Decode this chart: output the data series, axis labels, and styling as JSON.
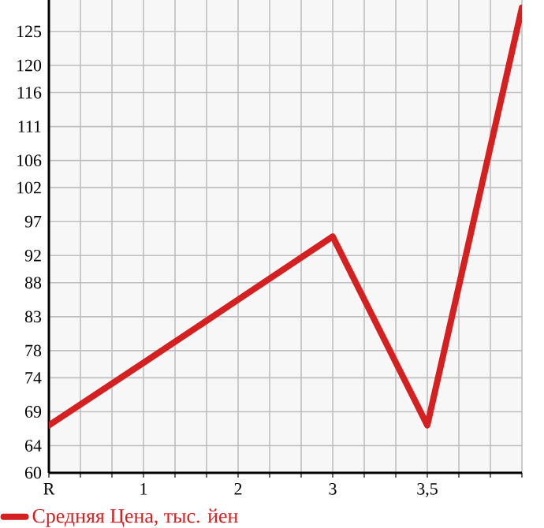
{
  "chart_data": {
    "type": "line",
    "categories": [
      "R",
      "1",
      "2",
      "3",
      "3,5",
      null
    ],
    "series": [
      {
        "name": "Средняя Цена, тыс. йен",
        "color": "#d42020",
        "values": [
          67.0,
          76.2,
          85.5,
          94.8,
          67.0,
          128.5
        ]
      }
    ],
    "ylim": [
      60,
      129.64
    ],
    "yticks": [
      60,
      64,
      69,
      74,
      78,
      83,
      88,
      92,
      97,
      102,
      106,
      111,
      116,
      120,
      125
    ],
    "grid": true,
    "legend": "bottom left"
  }
}
